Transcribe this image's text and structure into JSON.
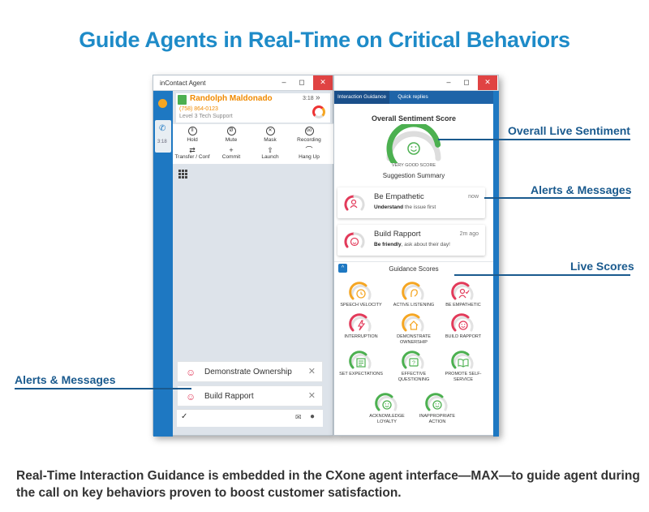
{
  "headline": "Guide Agents in Real-Time on Critical Behaviors",
  "caption": "Real-Time Interaction Guidance is embedded in the CXone agent interface—MAX—to guide agent during the call on key behaviors proven to boost customer satisfaction.",
  "callouts": {
    "overall_live_sentiment": "Overall Live Sentiment",
    "alerts_messages_right": "Alerts & Messages",
    "live_scores": "Live Scores",
    "alerts_messages_left": "Alerts & Messages"
  },
  "left_window": {
    "title": "inContact Agent",
    "rail_time": "3:18",
    "contact": {
      "name": "Randolph Maldonado",
      "phone": "(758) 864-0123",
      "level": "Level 3 Tech Support",
      "time": "3:18"
    },
    "controls_row1": [
      {
        "label": "Hold",
        "icon": "pause-icon",
        "glyph": "II"
      },
      {
        "label": "Mute",
        "icon": "mute-icon",
        "glyph": "Ø"
      },
      {
        "label": "Mask",
        "icon": "mask-icon",
        "glyph": "✕"
      },
      {
        "label": "Recording",
        "icon": "recording-icon",
        "glyph": "oo"
      }
    ],
    "controls_row2": [
      {
        "label": "Transfer / Conf",
        "icon": "transfer-icon",
        "glyph": "⇄"
      },
      {
        "label": "Commit",
        "icon": "plus-icon",
        "glyph": "+"
      },
      {
        "label": "Launch",
        "icon": "launch-icon",
        "glyph": "⇧"
      },
      {
        "label": "Hang Up",
        "icon": "hang-up-icon",
        "glyph": "⌒"
      }
    ],
    "alerts": [
      {
        "label": "Demonstrate Ownership",
        "icon": "person-check-icon"
      },
      {
        "label": "Build Rapport",
        "icon": "smiley-icon"
      }
    ]
  },
  "right_window": {
    "tabs": [
      "Interaction Guidance",
      "Quick replies"
    ],
    "sentiment_title": "Overall Sentiment Score",
    "sentiment_label": "VERY GOOD SCORE",
    "sentiment_level": 0.8,
    "suggestion_summary": "Suggestion Summary",
    "cards": [
      {
        "title": "Be Empathetic",
        "desc_bold": "Understand",
        "desc_rest": " the issue first",
        "time": "now"
      },
      {
        "title": "Build Rapport",
        "desc_bold": "Be friendly",
        "desc_rest": ", ask about their day!",
        "time": "2m ago"
      }
    ],
    "guidance_title": "Guidance Scores",
    "scores": [
      {
        "label": "SPEECH VELOCITY",
        "color": "#f5a623",
        "icon": "clock-icon"
      },
      {
        "label": "ACTIVE LISTENING",
        "color": "#f5a623",
        "icon": "ear-icon"
      },
      {
        "label": "BE EMPATHETIC",
        "color": "#e23a5a",
        "icon": "person-check-icon"
      },
      {
        "label": "INTERRUPTION",
        "color": "#e23a5a",
        "icon": "lightning-icon"
      },
      {
        "label": "DEMONSTRATE OWNERSHIP",
        "color": "#f5a623",
        "icon": "house-icon"
      },
      {
        "label": "BUILD RAPPORT",
        "color": "#e23a5a",
        "icon": "smiley-icon"
      },
      {
        "label": "SET EXPECTATIONS",
        "color": "#4cb050",
        "icon": "list-icon"
      },
      {
        "label": "EFFECTIVE QUESTIONING",
        "color": "#4cb050",
        "icon": "question-icon"
      },
      {
        "label": "PROMOTE SELF-SERVICE",
        "color": "#4cb050",
        "icon": "book-icon"
      },
      {
        "label": "ACKNOWLEDGE LOYALTY",
        "color": "#4cb050",
        "icon": "smiley-icon"
      },
      {
        "label": "INAPPROPRIATE ACTION",
        "color": "#4cb050",
        "icon": "smiley-icon"
      }
    ]
  }
}
